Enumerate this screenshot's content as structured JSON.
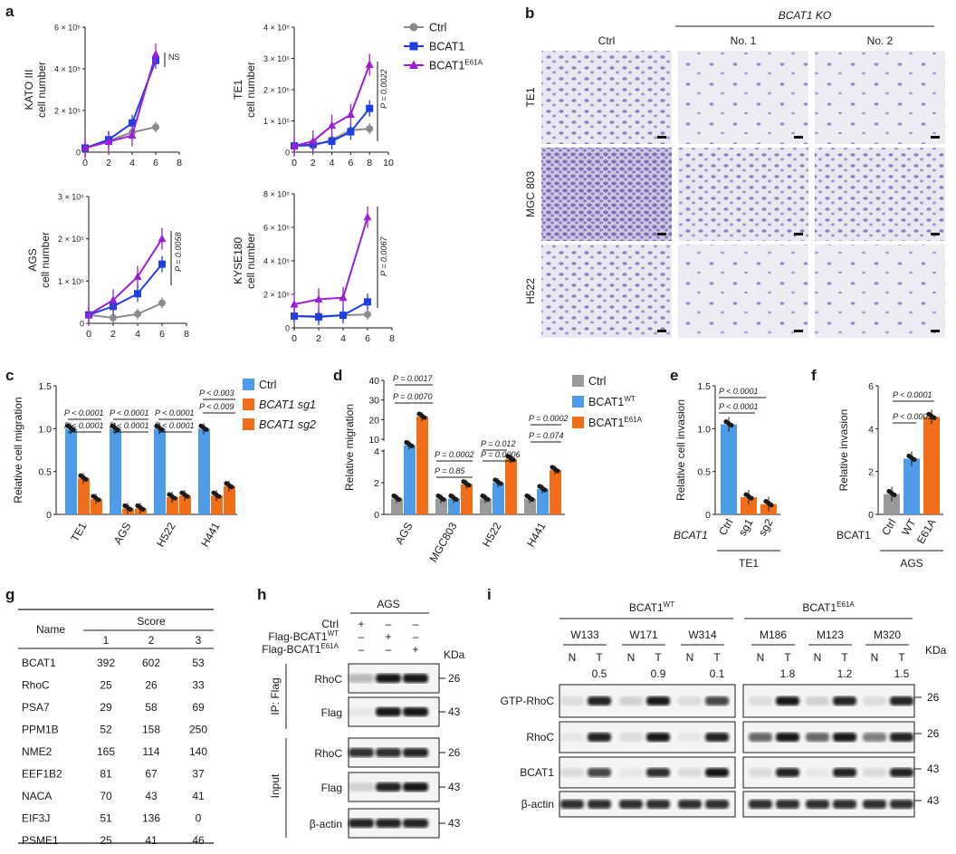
{
  "panels": {
    "a": "a",
    "b": "b",
    "c": "c",
    "d": "d",
    "e": "e",
    "f": "f",
    "g": "g",
    "h": "h",
    "i": "i"
  },
  "colors": {
    "ctrl": "#8c8c8c",
    "bcat1": "#1f3fe0",
    "e61a": "#9a1fd6",
    "blue": "#4e9be8",
    "orange": "#f26f1a",
    "gray": "#9a9a9a",
    "crystal": "#9c8cc4"
  },
  "chart_data": [
    {
      "type": "line",
      "id": "a-kato",
      "ylabel": [
        "KATO III",
        "cell number"
      ],
      "x": [
        0,
        2,
        4,
        6
      ],
      "xlim": [
        0,
        8
      ],
      "xticks": [
        "0",
        "2",
        "4",
        "6",
        "8"
      ],
      "ylim": [
        0,
        600000
      ],
      "yticks": [
        "0",
        "2 × 10⁵",
        "4 × 10⁵",
        "6 × 10⁵"
      ],
      "series": [
        {
          "name": "Ctrl",
          "values": [
            20000,
            55000,
            95000,
            120000
          ]
        },
        {
          "name": "BCAT1",
          "values": [
            20000,
            60000,
            140000,
            440000
          ]
        },
        {
          "name": "BCAT1E61A",
          "values": [
            20000,
            50000,
            80000,
            470000
          ]
        }
      ],
      "annotation": "NS"
    },
    {
      "type": "line",
      "id": "a-te1",
      "ylabel": [
        "TE1",
        "cell number"
      ],
      "x": [
        0,
        2,
        4,
        6,
        8
      ],
      "xlim": [
        0,
        10
      ],
      "xticks": [
        "0",
        "2",
        "4",
        "6",
        "8",
        "10"
      ],
      "ylim": [
        0,
        400000
      ],
      "yticks": [
        "0",
        "1 × 10⁵",
        "2 × 10⁵",
        "3 × 10⁵",
        "4 × 10⁵"
      ],
      "series": [
        {
          "name": "Ctrl",
          "values": [
            20000,
            20000,
            40000,
            70000,
            75000
          ]
        },
        {
          "name": "BCAT1",
          "values": [
            20000,
            25000,
            35000,
            65000,
            140000
          ]
        },
        {
          "name": "BCAT1E61A",
          "values": [
            20000,
            35000,
            85000,
            120000,
            280000
          ]
        }
      ],
      "annotation": "P = 0.0022"
    },
    {
      "type": "line",
      "id": "a-ags",
      "ylabel": [
        "AGS",
        "cell number"
      ],
      "x": [
        0,
        2,
        4,
        6
      ],
      "xlim": [
        0,
        8
      ],
      "xticks": [
        "0",
        "2",
        "4",
        "6",
        "8"
      ],
      "ylim": [
        0,
        300000
      ],
      "yticks": [
        "0",
        "1 × 10⁵",
        "2 × 10⁵",
        "3 × 10⁵"
      ],
      "series": [
        {
          "name": "Ctrl",
          "values": [
            20000,
            13000,
            22000,
            48000
          ]
        },
        {
          "name": "BCAT1",
          "values": [
            20000,
            40000,
            70000,
            140000
          ]
        },
        {
          "name": "BCAT1E61A",
          "values": [
            20000,
            55000,
            110000,
            200000
          ]
        }
      ],
      "annotation": "P = 0.0058"
    },
    {
      "type": "line",
      "id": "a-kyse",
      "ylabel": [
        "KYSE180",
        "cell number"
      ],
      "x": [
        0,
        2,
        4,
        6
      ],
      "xlim": [
        0,
        8
      ],
      "xticks": [
        "0",
        "2",
        "4",
        "6",
        "8"
      ],
      "ylim": [
        0,
        800000
      ],
      "yticks": [
        "0",
        "2 × 10⁵",
        "4 × 10⁵",
        "6 × 10⁵",
        "8 × 10⁵"
      ],
      "series": [
        {
          "name": "Ctrl",
          "values": [
            70000,
            70000,
            75000,
            80000
          ]
        },
        {
          "name": "BCAT1",
          "values": [
            70000,
            65000,
            75000,
            155000
          ]
        },
        {
          "name": "BCAT1E61A",
          "values": [
            140000,
            170000,
            180000,
            660000
          ]
        }
      ],
      "annotation": "P = 0.0067"
    },
    {
      "type": "bar",
      "id": "c",
      "ylabel": "Relative cell migration",
      "categories": [
        "TE1",
        "AGS",
        "H522",
        "H441"
      ],
      "ylim": [
        0,
        1.5
      ],
      "yticks": [
        "0",
        "0.5",
        "1.0",
        "1.5"
      ],
      "series": [
        {
          "name": "Ctrl",
          "values": [
            1.0,
            1.0,
            1.0,
            1.0
          ]
        },
        {
          "name": "BCAT1 sg1",
          "values": [
            0.42,
            0.07,
            0.2,
            0.22
          ]
        },
        {
          "name": "BCAT1 sg2",
          "values": [
            0.18,
            0.07,
            0.22,
            0.33
          ]
        }
      ],
      "pvalues": [
        "P < 0.0001",
        "P < 0.0001",
        "P < 0.0001",
        "P < 0.0001",
        "P < 0.0001",
        "P < 0.0001",
        "P < 0.003",
        "P < 0.009"
      ]
    },
    {
      "type": "bar",
      "id": "d",
      "ylabel": "Relative migration",
      "categories": [
        "AGS",
        "MGC803",
        "H522",
        "H441"
      ],
      "yticks": [
        "0",
        "2",
        "4",
        "10",
        "20",
        "30",
        "40"
      ],
      "series": [
        {
          "name": "Ctrl",
          "values": [
            1.0,
            1.0,
            1.0,
            1.0
          ]
        },
        {
          "name": "BCAT1WT",
          "values": [
            7.0,
            1.0,
            2.0,
            1.6
          ]
        },
        {
          "name": "BCAT1E61A",
          "values": [
            21.5,
            1.9,
            3.5,
            2.8
          ]
        }
      ],
      "pvalues": [
        "P = 0.0017",
        "P = 0.0070",
        "P = 0.0002",
        "P = 0.85",
        "P = 0.0006",
        "P = 0.012",
        "P = 0.0002",
        "P = 0.074"
      ]
    },
    {
      "type": "bar",
      "id": "e",
      "ylabel": "Relative cell invasion",
      "categories": [
        "Ctrl",
        "sg1",
        "sg2"
      ],
      "group_label": "BCAT1",
      "xlabel": "TE1",
      "ylim": [
        0,
        1.5
      ],
      "yticks": [
        "0",
        "0.5",
        "1.0",
        "1.5"
      ],
      "values": [
        1.05,
        0.2,
        0.12
      ],
      "pvalues": [
        "P < 0.0001",
        "P < 0.0001"
      ]
    },
    {
      "type": "bar",
      "id": "f",
      "ylabel": "Relative invasion",
      "categories": [
        "Ctrl",
        "WT",
        "E61A"
      ],
      "group_label": "BCAT1",
      "xlabel": "AGS",
      "ylim": [
        0,
        6
      ],
      "yticks": [
        "0",
        "2",
        "4",
        "6"
      ],
      "values": [
        0.95,
        2.6,
        4.55
      ],
      "pvalues": [
        "P < 0.0001",
        "P < 0.0001"
      ]
    }
  ],
  "panel_a": {
    "legend": [
      {
        "name": "Ctrl",
        "sup": ""
      },
      {
        "name": "BCAT1",
        "sup": ""
      },
      {
        "name": "BCAT1",
        "sup": "E61A"
      }
    ]
  },
  "panel_b": {
    "header": "BCAT1 KO",
    "cols": [
      "Ctrl",
      "No. 1",
      "No. 2"
    ],
    "rows": [
      "TE1",
      "MGC 803",
      "H522"
    ]
  },
  "panel_d": {
    "legend": [
      {
        "name": "Ctrl",
        "sup": ""
      },
      {
        "name": "BCAT1",
        "sup": "WT"
      },
      {
        "name": "BCAT1",
        "sup": "E61A"
      }
    ]
  },
  "panel_g": {
    "name_header": "Name",
    "score_header": "Score",
    "cols": [
      "1",
      "2",
      "3"
    ],
    "rows": [
      [
        "BCAT1",
        "392",
        "602",
        "53"
      ],
      [
        "RhoC",
        "25",
        "26",
        "33"
      ],
      [
        "PSA7",
        "29",
        "58",
        "69"
      ],
      [
        "PPM1B",
        "52",
        "158",
        "250"
      ],
      [
        "NME2",
        "165",
        "114",
        "140"
      ],
      [
        "EEF1B2",
        "81",
        "67",
        "37"
      ],
      [
        "NACA",
        "70",
        "43",
        "41"
      ],
      [
        "EIF3J",
        "51",
        "136",
        "0"
      ],
      [
        "PSME1",
        "25",
        "41",
        "46"
      ]
    ]
  },
  "panel_h": {
    "title": "AGS",
    "conditions": [
      {
        "label": "Ctrl",
        "sup": "",
        "marks": [
          "+",
          "–",
          "–"
        ]
      },
      {
        "label": "Flag-BCAT1",
        "sup": "WT",
        "marks": [
          "–",
          "+",
          "–"
        ]
      },
      {
        "label": "Flag-BCAT1",
        "sup": "E61A",
        "marks": [
          "–",
          "–",
          "+"
        ]
      }
    ],
    "kda": "KDa",
    "group_ip": "IP: Flag",
    "group_input": "Input",
    "blots": [
      {
        "label": "RhoC",
        "kda": "26"
      },
      {
        "label": "Flag",
        "kda": "43"
      },
      {
        "label": "RhoC",
        "kda": "26"
      },
      {
        "label": "Flag",
        "kda": "43"
      },
      {
        "label": "β-actin",
        "kda": "43"
      }
    ]
  },
  "panel_i": {
    "group1": "BCAT1",
    "group1_sup": "WT",
    "group2": "BCAT1",
    "group2_sup": "E61A",
    "samples": [
      "W133",
      "W171",
      "W314",
      "M186",
      "M123",
      "M320"
    ],
    "nt": [
      "N",
      "T"
    ],
    "ratios": [
      "0.5",
      "0.9",
      "0.1",
      "1.8",
      "1.2",
      "1.5"
    ],
    "kda": "KDa",
    "blots": [
      {
        "label": "GTP-RhoC",
        "kda": "26"
      },
      {
        "label": "RhoC",
        "kda": "26"
      },
      {
        "label": "BCAT1",
        "kda": "43"
      },
      {
        "label": "β-actin",
        "kda": "43"
      }
    ]
  }
}
